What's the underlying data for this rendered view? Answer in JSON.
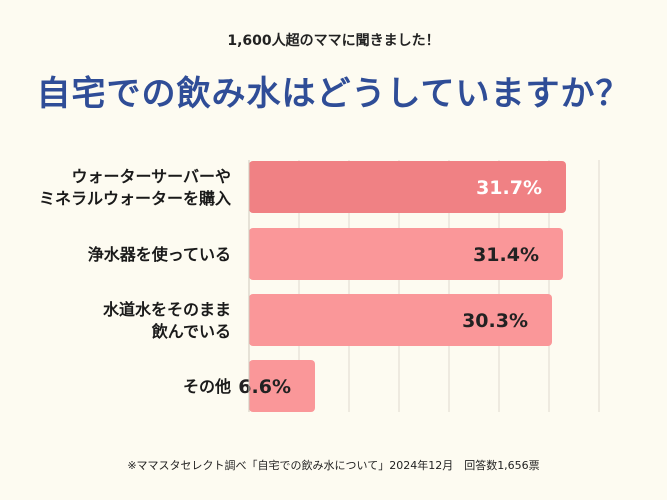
{
  "header": {
    "subtitle": "1,600人超のママに聞きました！",
    "title": "自宅での飲み水はどうしていますか？"
  },
  "footnote": "※ママスタセレクト調べ「自宅での飲み水について」2024年12月　回答数1,656票",
  "chart_data": {
    "type": "bar",
    "orientation": "horizontal",
    "title": "自宅での飲み水はどうしていますか？",
    "subtitle": "1,600人超のママに聞きました！",
    "categories": [
      [
        "ウォーターサーバーや",
        "ミネラルウォーターを購入"
      ],
      [
        "浄水器を使っている"
      ],
      [
        "水道水をそのまま",
        "飲んでいる"
      ],
      [
        "その他"
      ]
    ],
    "values": [
      31.7,
      31.4,
      30.3,
      6.6
    ],
    "value_labels": [
      "31.7%",
      "31.4%",
      "30.3%",
      "6.6%"
    ],
    "xlim": [
      0,
      35
    ],
    "grid": true,
    "colors": {
      "highlight_bar": "#f08184",
      "bar": "#fa9799",
      "value_text_inside": "#ffffff",
      "value_text_dark": "#222222",
      "title": "#2f4d97",
      "grid": "#dedad0"
    }
  }
}
